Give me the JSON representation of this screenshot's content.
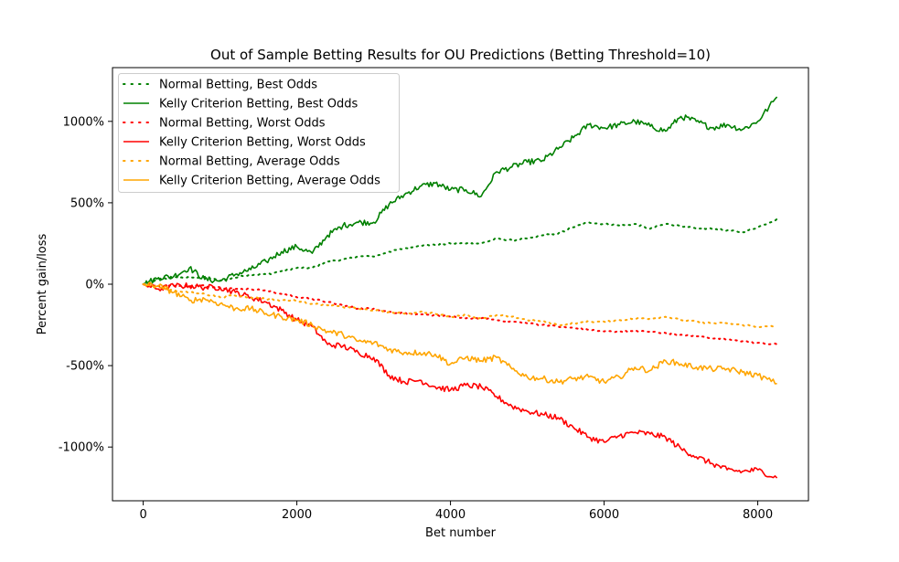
{
  "chart_data": {
    "type": "line",
    "title": "Out of Sample Betting Results for OU Predictions (Betting Threshold=10)",
    "xlabel": "Bet number",
    "ylabel": "Percent gain/loss",
    "xlim": [
      -400,
      8660
    ],
    "ylim": [
      -1330,
      1330
    ],
    "x_ticks": [
      0,
      2000,
      4000,
      6000,
      8000
    ],
    "x_tick_labels": [
      "0",
      "2000",
      "4000",
      "6000",
      "8000"
    ],
    "y_ticks": [
      1000,
      500,
      0,
      -500,
      -1000
    ],
    "y_tick_labels": [
      "1000%",
      "500%",
      "0%",
      "-500%",
      "-1000%"
    ],
    "grid": false,
    "legend_position": "top-left",
    "x": [
      0,
      200,
      400,
      600,
      800,
      1000,
      1200,
      1400,
      1600,
      1800,
      2000,
      2200,
      2400,
      2600,
      2800,
      3000,
      3200,
      3400,
      3600,
      3800,
      4000,
      4200,
      4400,
      4600,
      4800,
      5000,
      5200,
      5400,
      5600,
      5800,
      6000,
      6200,
      6400,
      6600,
      6800,
      7000,
      7200,
      7400,
      7600,
      7800,
      8000,
      8250
    ],
    "series": [
      {
        "name": "Normal Betting, Best Odds",
        "color": "#008000",
        "style": "dotted",
        "values": [
          0,
          30,
          40,
          40,
          45,
          20,
          40,
          60,
          60,
          80,
          100,
          100,
          140,
          150,
          170,
          170,
          200,
          220,
          240,
          240,
          250,
          250,
          250,
          280,
          270,
          280,
          300,
          310,
          350,
          380,
          370,
          360,
          370,
          340,
          370,
          360,
          340,
          340,
          330,
          320,
          350,
          400
        ]
      },
      {
        "name": "Kelly Criterion Betting, Best Odds",
        "color": "#008000",
        "style": "solid",
        "values": [
          0,
          40,
          50,
          100,
          30,
          20,
          60,
          90,
          140,
          200,
          230,
          190,
          300,
          360,
          380,
          380,
          490,
          550,
          600,
          620,
          580,
          580,
          540,
          690,
          720,
          750,
          760,
          830,
          900,
          980,
          960,
          980,
          1000,
          970,
          940,
          1030,
          1000,
          960,
          980,
          950,
          1000,
          1150
        ]
      },
      {
        "name": "Normal Betting, Worst Odds",
        "color": "#ff0000",
        "style": "dotted",
        "values": [
          0,
          -10,
          -10,
          -10,
          -10,
          -20,
          -30,
          -30,
          -40,
          -60,
          -80,
          -90,
          -110,
          -130,
          -150,
          -150,
          -170,
          -180,
          -190,
          -190,
          -200,
          -210,
          -210,
          -220,
          -230,
          -240,
          -250,
          -260,
          -270,
          -280,
          -290,
          -290,
          -290,
          -290,
          -300,
          -310,
          -320,
          -330,
          -340,
          -350,
          -360,
          -370
        ]
      },
      {
        "name": "Kelly Criterion Betting, Worst Odds",
        "color": "#ff0000",
        "style": "solid",
        "values": [
          0,
          -30,
          -10,
          -10,
          -20,
          -20,
          -50,
          -80,
          -110,
          -160,
          -220,
          -260,
          -370,
          -380,
          -420,
          -450,
          -560,
          -600,
          -590,
          -630,
          -650,
          -620,
          -630,
          -690,
          -750,
          -780,
          -800,
          -820,
          -880,
          -940,
          -970,
          -930,
          -910,
          -920,
          -940,
          -1010,
          -1060,
          -1100,
          -1140,
          -1150,
          -1140,
          -1190
        ]
      },
      {
        "name": "Normal Betting, Average Odds",
        "color": "#ffa500",
        "style": "dotted",
        "values": [
          0,
          -20,
          -40,
          -50,
          -60,
          -80,
          -70,
          -80,
          -90,
          -100,
          -100,
          -120,
          -130,
          -140,
          -150,
          -160,
          -170,
          -180,
          -170,
          -180,
          -200,
          -190,
          -210,
          -190,
          -200,
          -220,
          -230,
          -250,
          -240,
          -230,
          -230,
          -220,
          -210,
          -210,
          -200,
          -220,
          -230,
          -240,
          -240,
          -250,
          -260,
          -260
        ]
      },
      {
        "name": "Kelly Criterion Betting, Average Odds",
        "color": "#ffa500",
        "style": "solid",
        "values": [
          0,
          -10,
          -50,
          -100,
          -90,
          -120,
          -150,
          -150,
          -180,
          -200,
          -220,
          -250,
          -290,
          -310,
          -350,
          -360,
          -400,
          -420,
          -420,
          -430,
          -490,
          -450,
          -470,
          -450,
          -520,
          -570,
          -580,
          -600,
          -580,
          -570,
          -600,
          -570,
          -510,
          -530,
          -470,
          -490,
          -510,
          -520,
          -520,
          -540,
          -560,
          -610
        ]
      }
    ]
  }
}
